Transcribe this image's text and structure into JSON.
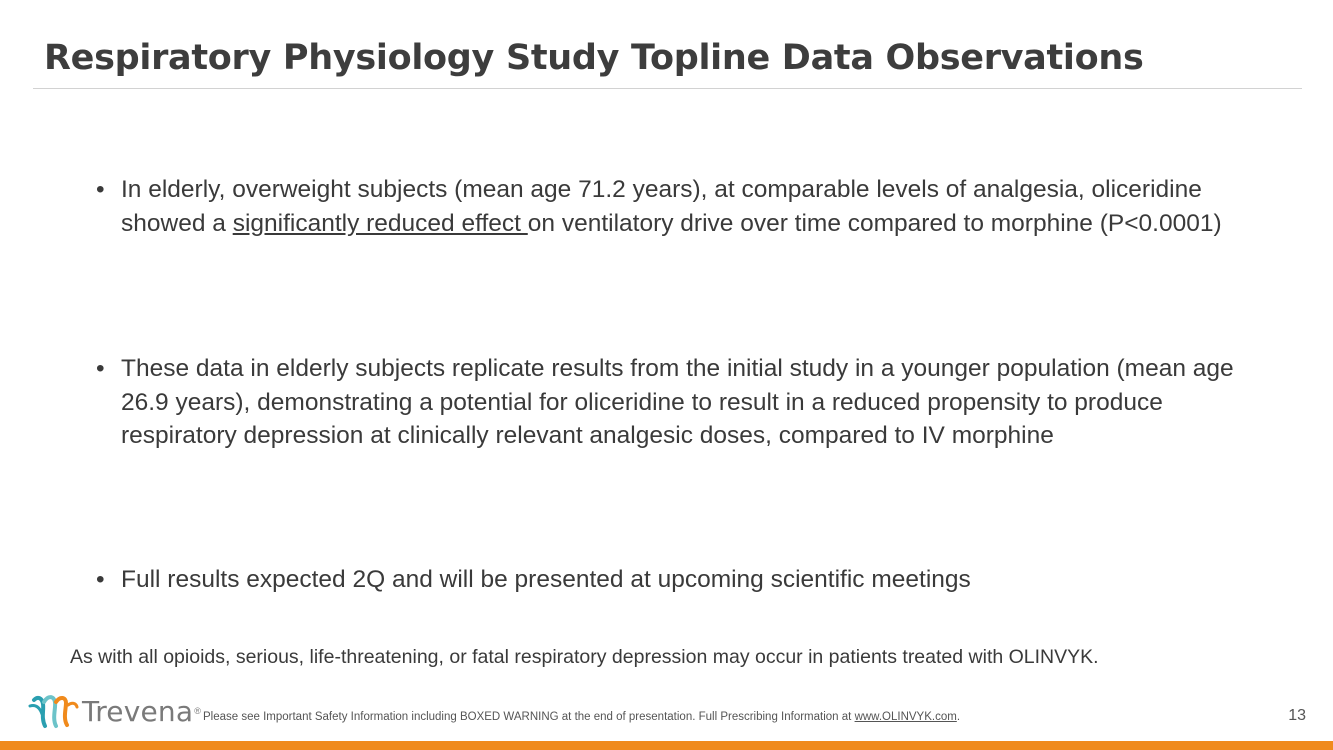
{
  "slide": {
    "title": "Respiratory Physiology Study Topline Data Observations",
    "bullet_marker": "•",
    "bullets": [
      {
        "before": "In elderly, overweight subjects (mean age 71.2 years), at comparable levels of analgesia, oliceridine showed a ",
        "underlined": "significantly reduced effect ",
        "after": "on ventilatory drive over time compared to morphine (P<0.0001)"
      },
      {
        "text": "These data in elderly subjects replicate results from the initial study in a younger population (mean age 26.9 years), demonstrating a potential for oliceridine to result in a reduced propensity to produce respiratory depression at clinically relevant analgesic doses, compared to IV morphine"
      },
      {
        "text": "Full results expected 2Q and will be presented at upcoming scientific meetings"
      }
    ],
    "warning": "As with all opioids, serious, life-threatening, or fatal respiratory depression may occur in patients treated with OLINVYK."
  },
  "footer": {
    "logo_text": "Trevena",
    "logo_reg": "®",
    "note_before": "Please see Important Safety Information including BOXED WARNING at the end of presentation. Full Prescribing Information at ",
    "note_link": "www.OLINVYK.com",
    "note_after": ".",
    "page_number": "13"
  },
  "colors": {
    "accent_orange": "#f08a1c",
    "logo_teal": "#2a9fb0",
    "title_text": "#3d3d3d"
  },
  "icons": {
    "logo_mark": "trevena-logo-icon"
  }
}
